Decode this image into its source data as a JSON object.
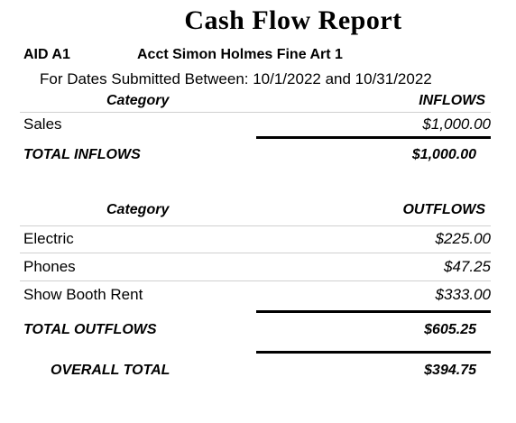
{
  "report": {
    "title": "Cash Flow Report",
    "aid": "AID  A1",
    "account": "Acct Simon Holmes Fine Art 1",
    "date_range": "For Dates Submitted Between: 10/1/2022 and 10/31/2022"
  },
  "inflows": {
    "category_header": "Category",
    "amount_header": "INFLOWS",
    "rows": [
      {
        "label": "Sales",
        "amount": "$1,000.00"
      }
    ],
    "total_label": "TOTAL INFLOWS",
    "total_amount": "$1,000.00"
  },
  "outflows": {
    "category_header": "Category",
    "amount_header": "OUTFLOWS",
    "rows": [
      {
        "label": "Electric",
        "amount": "$225.00"
      },
      {
        "label": "Phones",
        "amount": "$47.25"
      },
      {
        "label": "Show Booth Rent",
        "amount": "$333.00"
      }
    ],
    "total_label": "TOTAL OUTFLOWS",
    "total_amount": "$605.25"
  },
  "overall": {
    "label": "OVERALL TOTAL",
    "amount": "$394.75"
  }
}
